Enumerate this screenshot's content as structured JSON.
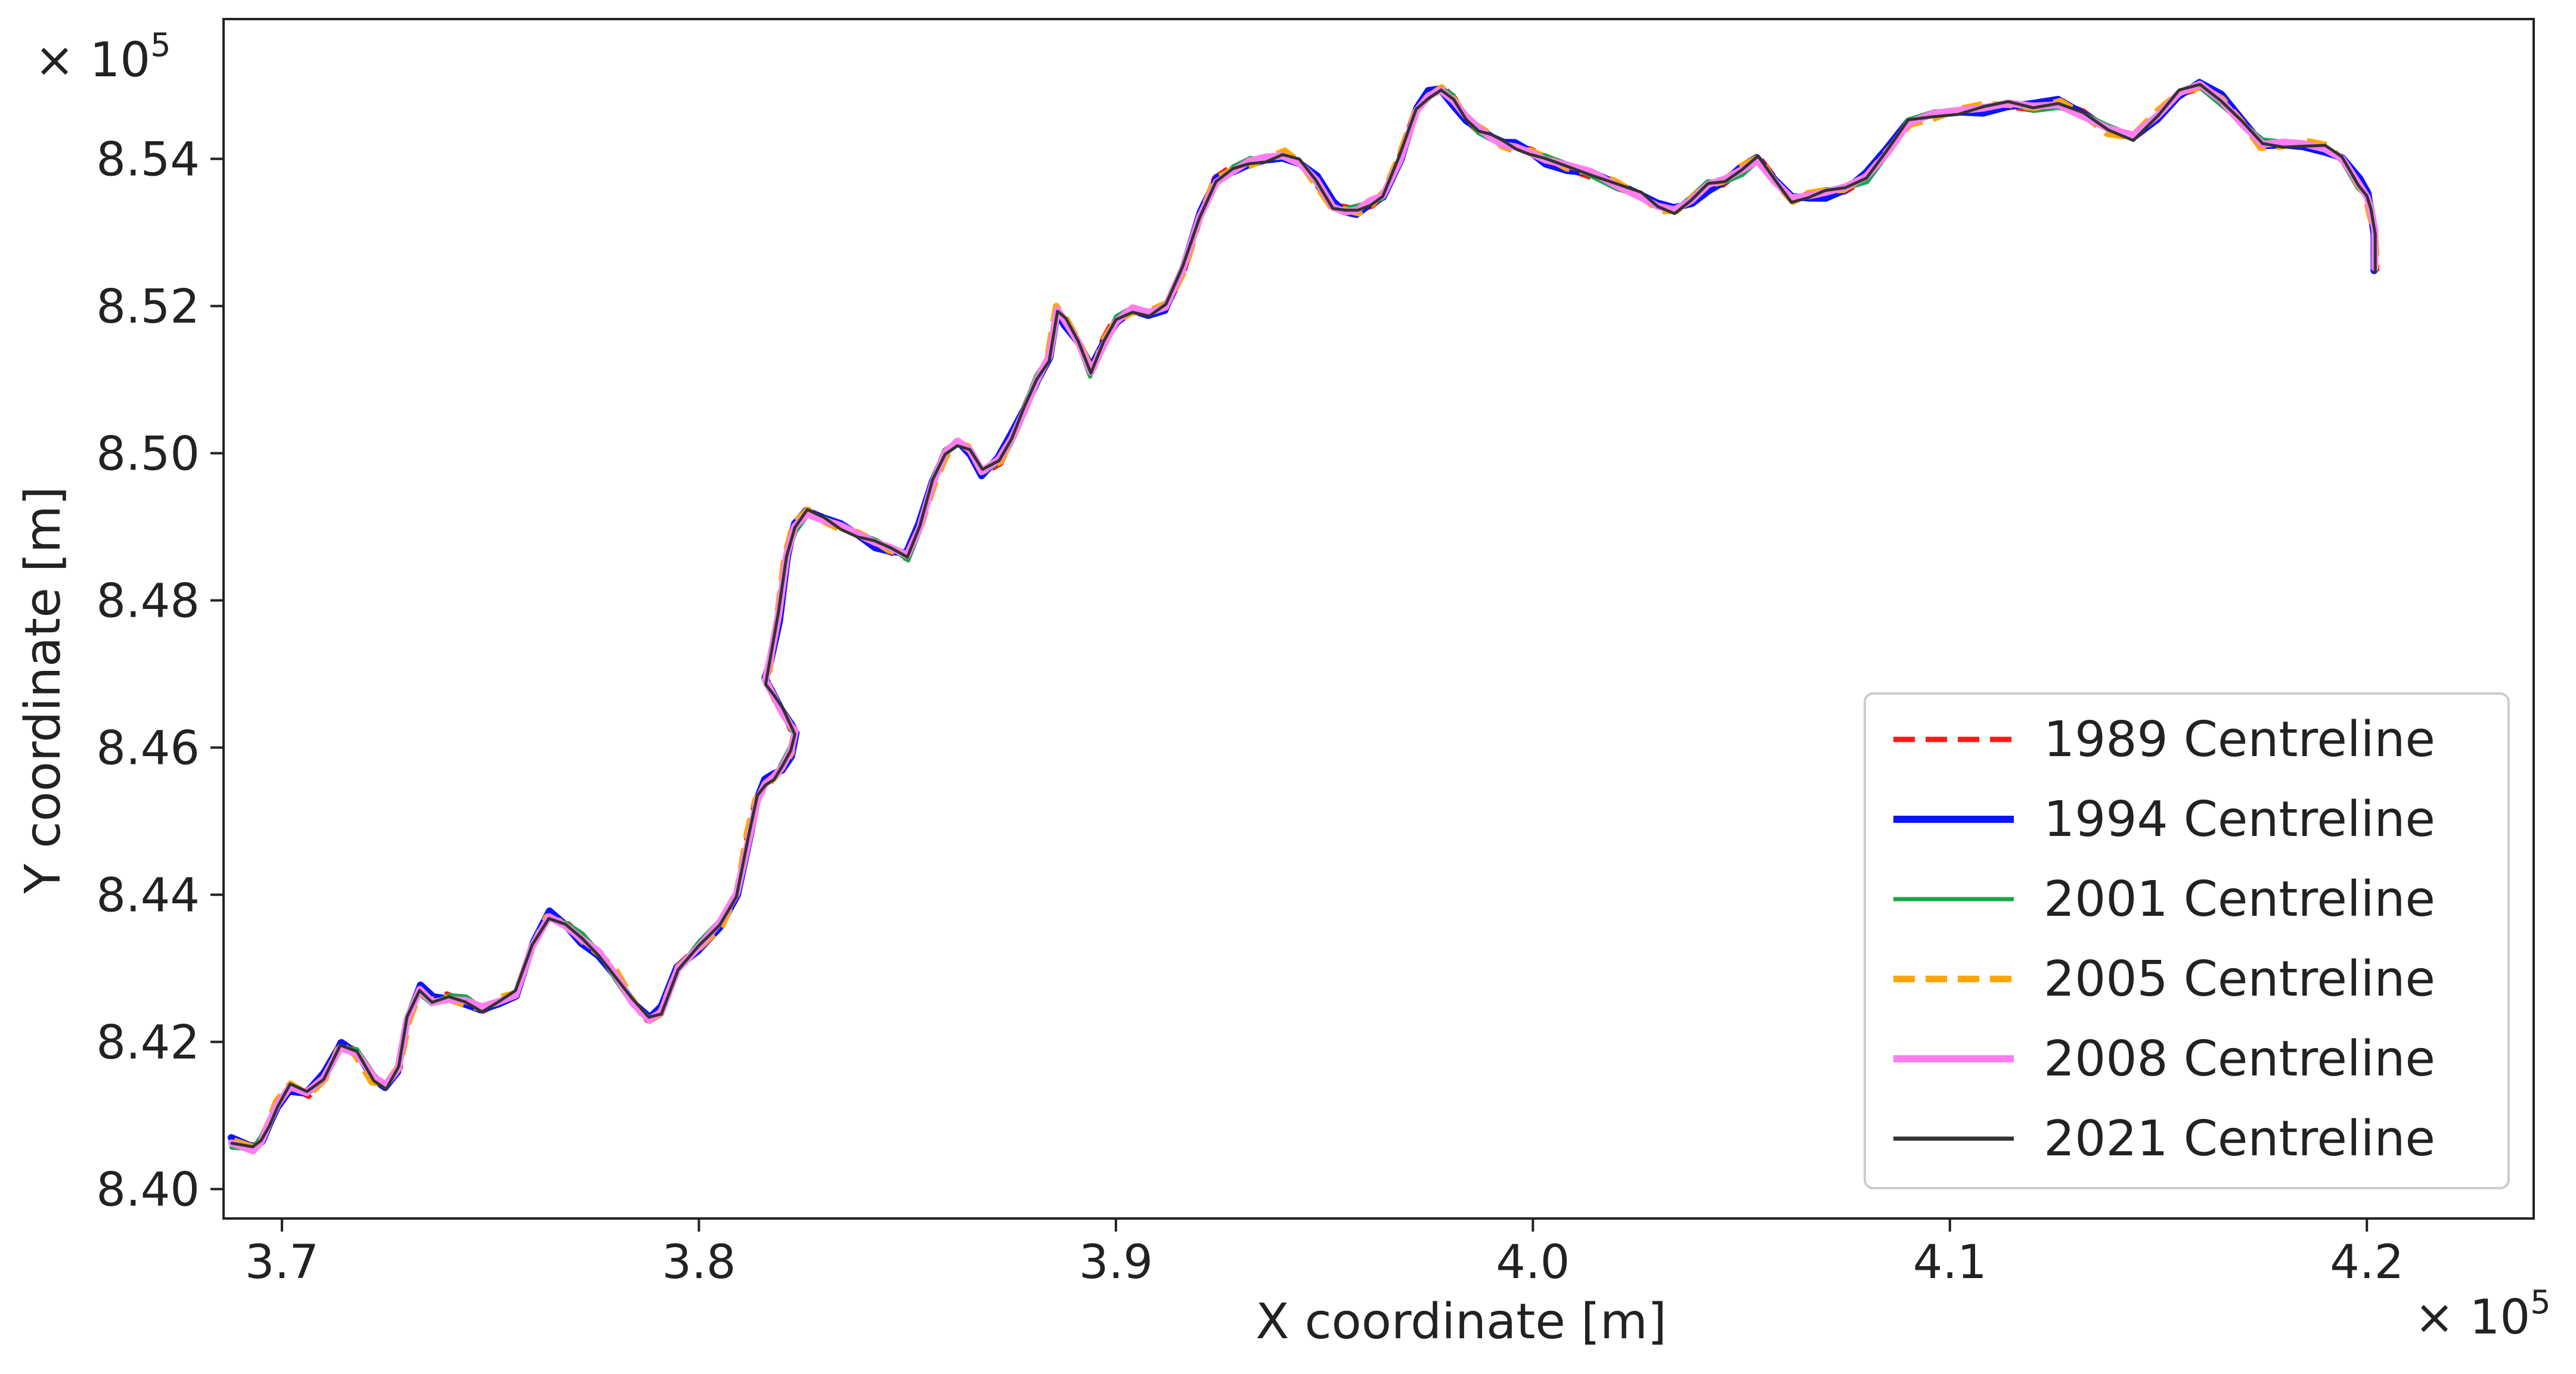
{
  "chart_data": {
    "type": "line",
    "xlabel": "X coordinate [m]",
    "ylabel": "Y coordinate [m]",
    "x_offset_label": "× 10",
    "x_offset_exp": "5",
    "y_offset_label": "× 10",
    "y_offset_exp": "5",
    "xlim": [
      3.686,
      4.24
    ],
    "ylim": [
      8.396,
      8.559
    ],
    "x_ticks": [
      3.7,
      3.8,
      3.9,
      4.0,
      4.1,
      4.2
    ],
    "x_tick_labels": [
      "3.7",
      "3.8",
      "3.9",
      "4.0",
      "4.1",
      "4.2"
    ],
    "y_ticks": [
      8.4,
      8.42,
      8.44,
      8.46,
      8.48,
      8.5,
      8.52,
      8.54
    ],
    "y_tick_labels": [
      "8.40",
      "8.42",
      "8.44",
      "8.46",
      "8.48",
      "8.50",
      "8.52",
      "8.54"
    ],
    "grid": false,
    "legend_position": "bottom-right",
    "centreline": {
      "x": [
        3.688,
        3.693,
        3.695,
        3.697,
        3.699,
        3.702,
        3.706,
        3.71,
        3.714,
        3.718,
        3.722,
        3.725,
        3.728,
        3.73,
        3.733,
        3.736,
        3.74,
        3.744,
        3.748,
        3.752,
        3.756,
        3.76,
        3.764,
        3.768,
        3.772,
        3.776,
        3.78,
        3.784,
        3.788,
        3.791,
        3.795,
        3.8,
        3.805,
        3.809,
        3.812,
        3.814,
        3.816,
        3.818,
        3.82,
        3.822,
        3.823,
        3.822,
        3.82,
        3.818,
        3.816,
        3.817,
        3.819,
        3.821,
        3.823,
        3.826,
        3.83,
        3.834,
        3.838,
        3.842,
        3.846,
        3.85,
        3.853,
        3.856,
        3.859,
        3.862,
        3.865,
        3.868,
        3.872,
        3.875,
        3.878,
        3.881,
        3.884,
        3.886,
        3.888,
        3.891,
        3.894,
        3.897,
        3.9,
        3.904,
        3.908,
        3.912,
        3.916,
        3.92,
        3.924,
        3.928,
        3.932,
        3.936,
        3.94,
        3.944,
        3.948,
        3.952,
        3.955,
        3.958,
        3.961,
        3.964,
        3.968,
        3.972,
        3.975,
        3.978,
        3.981,
        3.984,
        3.987,
        3.99,
        3.993,
        3.996,
        3.999,
        4.003,
        4.008,
        4.014,
        4.02,
        4.026,
        4.03,
        4.034,
        4.038,
        4.042,
        4.046,
        4.05,
        4.054,
        4.058,
        4.062,
        4.066,
        4.07,
        4.075,
        4.08,
        4.085,
        4.09,
        4.096,
        4.102,
        4.108,
        4.114,
        4.12,
        4.126,
        4.132,
        4.138,
        4.144,
        4.15,
        4.155,
        4.16,
        4.165,
        4.17,
        4.175,
        4.18,
        4.185,
        4.19,
        4.194,
        4.198,
        4.2,
        4.201,
        4.202,
        4.202
      ],
      "y": [
        8.4063,
        8.4055,
        8.4065,
        8.409,
        8.4115,
        8.414,
        8.413,
        8.415,
        8.4195,
        8.4185,
        8.415,
        8.414,
        8.4165,
        8.423,
        8.427,
        8.4255,
        8.426,
        8.4255,
        8.4245,
        8.4255,
        8.4265,
        8.433,
        8.437,
        8.436,
        8.434,
        8.432,
        8.429,
        8.4255,
        8.423,
        8.424,
        8.43,
        8.433,
        8.436,
        8.44,
        8.448,
        8.453,
        8.455,
        8.456,
        8.4575,
        8.4595,
        8.462,
        8.463,
        8.465,
        8.467,
        8.469,
        8.472,
        8.478,
        8.486,
        8.49,
        8.492,
        8.491,
        8.49,
        8.489,
        8.488,
        8.487,
        8.486,
        8.49,
        8.496,
        8.5,
        8.5015,
        8.5005,
        8.4975,
        8.499,
        8.502,
        8.506,
        8.51,
        8.513,
        8.5195,
        8.518,
        8.515,
        8.511,
        8.515,
        8.518,
        8.5195,
        8.519,
        8.52,
        8.525,
        8.532,
        8.537,
        8.5385,
        8.5395,
        8.54,
        8.5405,
        8.5395,
        8.537,
        8.5335,
        8.533,
        8.533,
        8.534,
        8.535,
        8.54,
        8.5465,
        8.5485,
        8.5495,
        8.548,
        8.5455,
        8.544,
        8.543,
        8.542,
        8.5415,
        8.541,
        8.54,
        8.539,
        8.538,
        8.5365,
        8.535,
        8.5335,
        8.533,
        8.5345,
        8.5365,
        8.537,
        8.5385,
        8.54,
        8.537,
        8.5345,
        8.535,
        8.5355,
        8.536,
        8.5375,
        8.541,
        8.545,
        8.546,
        8.5465,
        8.547,
        8.5475,
        8.547,
        8.5475,
        8.546,
        8.544,
        8.543,
        8.546,
        8.549,
        8.55,
        8.548,
        8.545,
        8.542,
        8.542,
        8.542,
        8.5415,
        8.54,
        8.5365,
        8.535,
        8.533,
        8.53,
        8.525
      ]
    },
    "series": [
      {
        "name": "1989 Centreline",
        "color": "#ff1a1a",
        "dash": "dashed",
        "width": 9
      },
      {
        "name": "1994 Centreline",
        "color": "#0a14ff",
        "dash": "solid",
        "width": 12
      },
      {
        "name": "2001 Centreline",
        "color": "#1aa64a",
        "dash": "solid",
        "width": 7
      },
      {
        "name": "2005 Centreline",
        "color": "#ffa500",
        "dash": "dashed",
        "width": 11
      },
      {
        "name": "2008 Centreline",
        "color": "#ff7ef0",
        "dash": "solid",
        "width": 12
      },
      {
        "name": "2021 Centreline",
        "color": "#333333",
        "dash": "solid",
        "width": 5
      }
    ]
  }
}
